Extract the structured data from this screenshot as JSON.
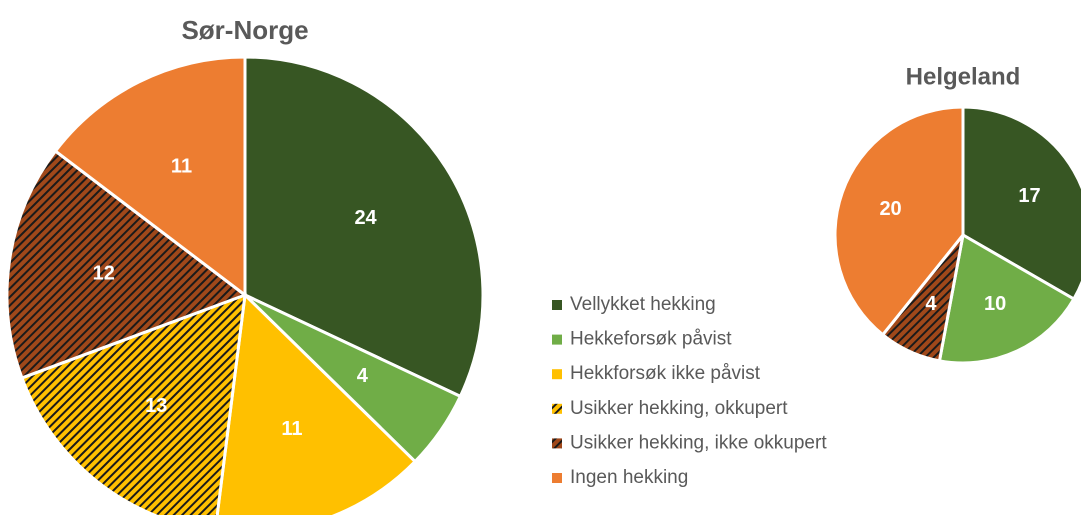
{
  "chart_data": [
    {
      "type": "pie",
      "title": "Sør-Norge",
      "categories": [
        "Vellykket hekking",
        "Hekkeforsøk påvist",
        "Hekkforsøk ikke påvist",
        "Usikker hekking, okkupert",
        "Usikker hekking, ikke okkupert",
        "Ingen hekking"
      ],
      "values": [
        24,
        4,
        11,
        13,
        12,
        11
      ],
      "colors": [
        "#375623",
        "#70ad47",
        "#ffc000",
        "#ffc000",
        "#a0481a",
        "#ed7d31"
      ],
      "hatch": [
        false,
        false,
        false,
        true,
        true,
        false
      ],
      "legend": "right"
    },
    {
      "type": "pie",
      "title": "Helgeland",
      "categories": [
        "Vellykket hekking",
        "Hekkeforsøk påvist",
        "Usikker hekking, ikke okkupert",
        "Ingen hekking"
      ],
      "values": [
        17,
        10,
        4,
        20
      ],
      "colors": [
        "#375623",
        "#70ad47",
        "#a0481a",
        "#ed7d31"
      ],
      "hatch": [
        false,
        false,
        true,
        false
      ]
    }
  ]
}
